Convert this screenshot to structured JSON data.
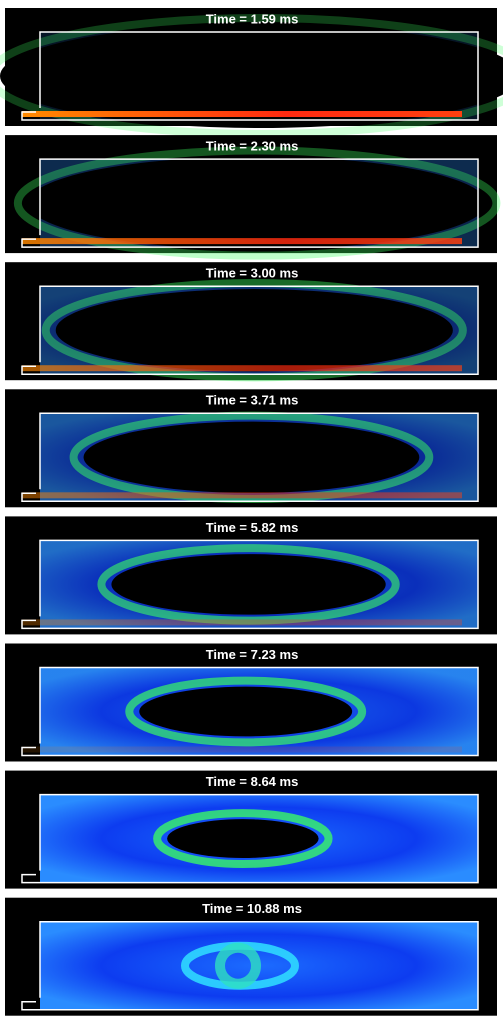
{
  "panels": [
    {
      "title": "Time = 1.59 ms"
    },
    {
      "title": "Time = 2.30 ms"
    },
    {
      "title": "Time = 3.00 ms"
    },
    {
      "title": "Time = 3.71 ms"
    },
    {
      "title": "Time = 5.82 ms"
    },
    {
      "title": "Time = 7.23 ms"
    },
    {
      "title": "Time = 8.64 ms"
    },
    {
      "title": "Time = 10.88 ms"
    }
  ]
}
